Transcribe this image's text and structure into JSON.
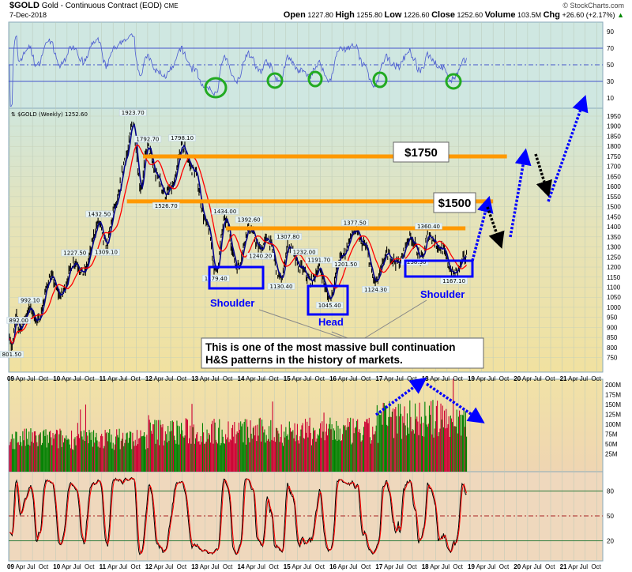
{
  "header": {
    "symbol": "$GOLD",
    "name": "Gold - Continuous Contract (EOD)",
    "exchange": "CME",
    "date": "7-Dec-2018",
    "watermark": "© StockCharts.com",
    "open_label": "Open",
    "open": "1227.80",
    "high_label": "High",
    "high": "1255.80",
    "low_label": "Low",
    "low": "1226.60",
    "close_label": "Close",
    "close": "1252.60",
    "volume_label": "Volume",
    "volume": "103.5M",
    "chg_label": "Chg",
    "chg": "+26.60 (+2.17%)",
    "chg_arrow": "▲"
  },
  "colors": {
    "up": "#008000",
    "down": "#cc0033",
    "ma_fast": "#00008b",
    "ma_slow": "#ff0000",
    "resistance": "#ff9900",
    "pattern": "#0000ff",
    "circle": "#22aa22"
  },
  "chart_data": [
    {
      "type": "line",
      "title": "$GOLD (Weekly) 1252.60",
      "panel": "price",
      "ylim": [
        750,
        1950
      ],
      "yticks": [
        1950,
        1900,
        1850,
        1800,
        1750,
        1700,
        1650,
        1600,
        1550,
        1500,
        1450,
        1400,
        1350,
        1300,
        1250,
        1200,
        1150,
        1100,
        1050,
        1000,
        950,
        900,
        850,
        800,
        750
      ],
      "xlim": [
        2009.0,
        2022.0
      ],
      "keypoints": [
        [
          2009.0,
          860
        ],
        [
          2009.05,
          801.5
        ],
        [
          2009.15,
          960
        ],
        [
          2009.2,
          892
        ],
        [
          2009.45,
          992.1
        ],
        [
          2009.6,
          930
        ],
        [
          2009.9,
          1150
        ],
        [
          2010.1,
          1060
        ],
        [
          2010.42,
          1227.5
        ],
        [
          2010.6,
          1170
        ],
        [
          2010.95,
          1420
        ],
        [
          2011.05,
          1330
        ],
        [
          2011.1,
          1309.1
        ],
        [
          2011.3,
          1500
        ],
        [
          2011.55,
          1760
        ],
        [
          2011.68,
          1923.7
        ],
        [
          2011.85,
          1600
        ],
        [
          2012.0,
          1792.7
        ],
        [
          2012.2,
          1650
        ],
        [
          2012.4,
          1560
        ],
        [
          2012.55,
          1600
        ],
        [
          2012.75,
          1798.1
        ],
        [
          2013.0,
          1680
        ],
        [
          2013.3,
          1400
        ],
        [
          2013.48,
          1179.4
        ],
        [
          2013.68,
          1434
        ],
        [
          2013.95,
          1200
        ],
        [
          2014.2,
          1392.6
        ],
        [
          2014.45,
          1290
        ],
        [
          2014.6,
          1340
        ],
        [
          2014.9,
          1140
        ],
        [
          2015.05,
          1307.8
        ],
        [
          2015.3,
          1200
        ],
        [
          2015.55,
          1130.4
        ],
        [
          2015.72,
          1191.7
        ],
        [
          2015.95,
          1045.4
        ],
        [
          2016.2,
          1250
        ],
        [
          2016.5,
          1377.5
        ],
        [
          2016.7,
          1310
        ],
        [
          2016.95,
          1124.3
        ],
        [
          2017.2,
          1260
        ],
        [
          2017.45,
          1220
        ],
        [
          2017.7,
          1350
        ],
        [
          2017.95,
          1240
        ],
        [
          2018.1,
          1360
        ],
        [
          2018.35,
          1300
        ],
        [
          2018.65,
          1167.1
        ],
        [
          2018.93,
          1252.6
        ]
      ],
      "price_labels": [
        {
          "t": 2009.05,
          "p": 801.5,
          "text": "801.50",
          "pos": "below"
        },
        {
          "t": 2009.2,
          "p": 892,
          "text": "892.00",
          "pos": "above"
        },
        {
          "t": 2009.45,
          "p": 992.1,
          "text": "992.10",
          "pos": "above"
        },
        {
          "t": 2010.42,
          "p": 1227.5,
          "text": "1227.50",
          "pos": "above"
        },
        {
          "t": 2011.1,
          "p": 1309.1,
          "text": "1309.10",
          "pos": "below"
        },
        {
          "t": 2010.95,
          "p": 1420,
          "text": "1432.50",
          "pos": "above"
        },
        {
          "t": 2011.68,
          "p": 1923.7,
          "text": "1923.70",
          "pos": "above"
        },
        {
          "t": 2012.0,
          "p": 1792.7,
          "text": "1792.70",
          "pos": "above"
        },
        {
          "t": 2012.4,
          "p": 1540,
          "text": "1526.70",
          "pos": "below"
        },
        {
          "t": 2012.75,
          "p": 1798.1,
          "text": "1798.10",
          "pos": "above"
        },
        {
          "t": 2013.68,
          "p": 1434,
          "text": "1434.00",
          "pos": "above"
        },
        {
          "t": 2013.48,
          "p": 1179.4,
          "text": "1179.40",
          "pos": "below"
        },
        {
          "t": 2014.2,
          "p": 1392.6,
          "text": "1392.60",
          "pos": "above"
        },
        {
          "t": 2014.45,
          "p": 1290,
          "text": "1240.20",
          "pos": "below"
        },
        {
          "t": 2015.05,
          "p": 1307.8,
          "text": "1307.80",
          "pos": "above"
        },
        {
          "t": 2014.9,
          "p": 1140,
          "text": "1130.40",
          "pos": "below"
        },
        {
          "t": 2015.4,
          "p": 1232,
          "text": "1232.00",
          "pos": "above"
        },
        {
          "t": 2015.72,
          "p": 1191.7,
          "text": "1191.70",
          "pos": "above"
        },
        {
          "t": 2015.95,
          "p": 1045.4,
          "text": "1045.40",
          "pos": "below"
        },
        {
          "t": 2016.3,
          "p": 1250,
          "text": "1201.50",
          "pos": "below"
        },
        {
          "t": 2016.5,
          "p": 1377.5,
          "text": "1377.50",
          "pos": "above"
        },
        {
          "t": 2016.95,
          "p": 1124.3,
          "text": "1124.30",
          "pos": "below"
        },
        {
          "t": 2017.8,
          "p": 1260,
          "text": "1238.30",
          "pos": "below"
        },
        {
          "t": 2018.1,
          "p": 1360,
          "text": "1360.40",
          "pos": "above"
        },
        {
          "t": 2018.65,
          "p": 1167.1,
          "text": "1167.10",
          "pos": "below"
        }
      ],
      "resistance_lines": [
        {
          "price": 1750,
          "from": 2011.9,
          "to": 2019.8
        },
        {
          "price": 1526.7,
          "from": 2011.55,
          "to": 2019.5
        },
        {
          "price": 1392.6,
          "from": 2013.7,
          "to": 2018.9
        }
      ],
      "price_tags": [
        {
          "text": "$1750",
          "price": 1750
        },
        {
          "text": "$1500",
          "price": 1530
        }
      ],
      "pattern_labels": [
        "Shoulder",
        "Head",
        "Shoulder"
      ],
      "annotation": "This is one of the most massive bull continuation H&S patterns in the history of markets."
    },
    {
      "type": "line",
      "panel": "rsi",
      "ylim": [
        0,
        100
      ],
      "yticks": [
        90,
        70,
        50,
        30,
        10
      ],
      "levels": [
        70,
        50,
        30
      ]
    },
    {
      "type": "bar",
      "panel": "volume",
      "ylim": [
        0,
        210
      ],
      "yticks": [
        "200M",
        "175M",
        "150M",
        "125M",
        "100M",
        "75M",
        "50M",
        "25M"
      ],
      "ytick_values": [
        200,
        175,
        150,
        125,
        100,
        75,
        50,
        25
      ]
    },
    {
      "type": "line",
      "panel": "stochastic",
      "ylim": [
        0,
        100
      ],
      "yticks": [
        80,
        50,
        20
      ]
    }
  ],
  "x_axis": {
    "years": [
      "09",
      "10",
      "11",
      "12",
      "13",
      "14",
      "15",
      "16",
      "17",
      "18",
      "19",
      "20",
      "21"
    ],
    "months": [
      "Apr",
      "Jul",
      "Oct"
    ]
  }
}
